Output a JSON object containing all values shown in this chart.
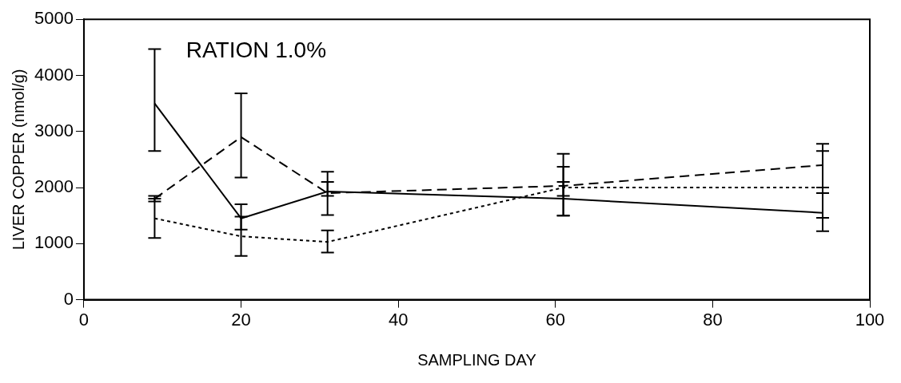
{
  "chart_data": {
    "type": "line",
    "xlabel": "SAMPLING DAY",
    "ylabel": "LIVER COPPER (nmol/g)",
    "annotations": [
      "RATION 1.0%"
    ],
    "x": [
      9,
      20,
      31,
      61,
      94
    ],
    "xlim": [
      0,
      100
    ],
    "xticks": [
      0,
      20,
      40,
      60,
      80,
      100
    ],
    "ylim": [
      0,
      5000
    ],
    "yticks": [
      0,
      1000,
      2000,
      3000,
      4000,
      5000
    ],
    "grid": false,
    "legend": false,
    "marker": "none",
    "series": [
      {
        "color": "#000000",
        "line_style": "solid",
        "values": [
          3500,
          1450,
          1930,
          1800,
          1550
        ],
        "errors": [
          [
            2650,
            4470
          ],
          [
            1250,
            1700
          ],
          [
            1510,
            2280
          ],
          [
            1500,
            2100
          ],
          [
            1220,
            1900
          ]
        ]
      },
      {
        "color": "#000000",
        "line_style": "dashed",
        "values": [
          1800,
          2900,
          1900,
          2030,
          2400
        ],
        "errors": [
          [
            1750,
            1850
          ],
          [
            2180,
            3680
          ],
          [
            1850,
            2100
          ],
          [
            1500,
            2600
          ],
          [
            2000,
            2780
          ]
        ]
      },
      {
        "color": "#000000",
        "line_style": "dotted",
        "values": [
          1450,
          1130,
          1030,
          2000,
          2000
        ],
        "errors": [
          [
            1100,
            1800
          ],
          [
            780,
            1480
          ],
          [
            840,
            1235
          ],
          [
            1850,
            2370
          ],
          [
            1460,
            2650
          ]
        ]
      }
    ]
  }
}
